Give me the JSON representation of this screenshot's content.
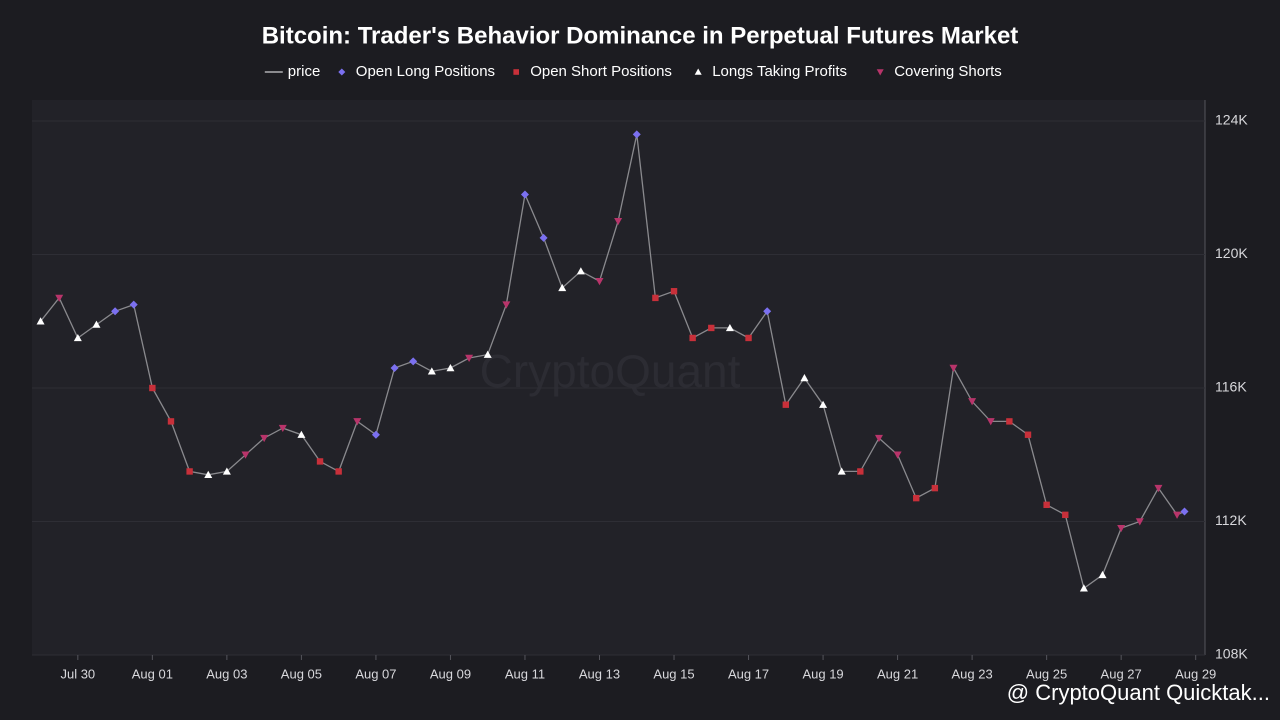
{
  "chart_data": {
    "type": "line",
    "title": "Bitcoin: Trader's Behavior Dominance in Perpetual Futures Market",
    "watermark": "CryptoQuant",
    "credit": "@ CryptoQuant Quicktak...",
    "xlim": [
      -1.23,
      30.25
    ],
    "xticks": [
      {
        "value": 0,
        "label": "Jul 30"
      },
      {
        "value": 2,
        "label": "Aug 01"
      },
      {
        "value": 4,
        "label": "Aug 03"
      },
      {
        "value": 6,
        "label": "Aug 05"
      },
      {
        "value": 8,
        "label": "Aug 07"
      },
      {
        "value": 10,
        "label": "Aug 09"
      },
      {
        "value": 12,
        "label": "Aug 11"
      },
      {
        "value": 14,
        "label": "Aug 13"
      },
      {
        "value": 16,
        "label": "Aug 15"
      },
      {
        "value": 18,
        "label": "Aug 17"
      },
      {
        "value": 20,
        "label": "Aug 19"
      },
      {
        "value": 22,
        "label": "Aug 21"
      },
      {
        "value": 24,
        "label": "Aug 23"
      },
      {
        "value": 26,
        "label": "Aug 25"
      },
      {
        "value": 28,
        "label": "Aug 27"
      },
      {
        "value": 30,
        "label": "Aug 29"
      }
    ],
    "ylim": [
      108000,
      124630
    ],
    "yticks": [
      {
        "value": 108000,
        "label": "108K"
      },
      {
        "value": 112000,
        "label": "112K"
      },
      {
        "value": 116000,
        "label": "116K"
      },
      {
        "value": 120000,
        "label": "120K"
      },
      {
        "value": 124000,
        "label": "124K"
      }
    ],
    "grid": true,
    "series": [
      {
        "name": "price",
        "color": "#8a8a8e",
        "marker": "line",
        "x": [
          -1,
          -0.5,
          0,
          0.5,
          1,
          1.5,
          2,
          2.5,
          3,
          3.5,
          4,
          4.5,
          5,
          5.5,
          6,
          6.5,
          7,
          7.5,
          8,
          8.5,
          9,
          9.5,
          10,
          10.5,
          11,
          11.5,
          12,
          12.5,
          13,
          13.5,
          14,
          14.5,
          15,
          15.5,
          16,
          16.5,
          17,
          17.5,
          18,
          18.5,
          19,
          19.5,
          20,
          20.5,
          21,
          21.5,
          22,
          22.5,
          23,
          23.5,
          24,
          24.5,
          25,
          25.5,
          26,
          26.5,
          27,
          27.5,
          28,
          28.5,
          29,
          29.5,
          29.7
        ],
        "values": [
          118000,
          118700,
          117500,
          117900,
          118300,
          118500,
          116000,
          115000,
          113500,
          113400,
          113500,
          114000,
          114500,
          114800,
          114600,
          113800,
          113500,
          115000,
          114600,
          116600,
          116800,
          116500,
          116600,
          116900,
          117000,
          118500,
          121800,
          120500,
          119000,
          119500,
          119200,
          121000,
          123600,
          118700,
          118900,
          117500,
          117800,
          117800,
          117500,
          118300,
          115500,
          116300,
          115500,
          113500,
          113500,
          114500,
          114000,
          112700,
          113000,
          116600,
          115600,
          115000,
          115000,
          114600,
          112500,
          112200,
          110000,
          110400,
          111800,
          112000,
          113000,
          112200,
          112300
        ]
      },
      {
        "name": "Open Long Positions",
        "color": "#7b70f0",
        "marker": "diamond",
        "x": [
          1,
          1.5,
          8,
          8.5,
          9,
          12,
          12.5,
          15,
          18.5,
          29.7
        ],
        "values": [
          118300,
          118500,
          114600,
          116600,
          116800,
          121800,
          120500,
          123600,
          118300,
          112300
        ]
      },
      {
        "name": "Open Short Positions",
        "color": "#c8303a",
        "marker": "square",
        "x": [
          2,
          2.5,
          3,
          6.5,
          7,
          15.5,
          16,
          16.5,
          17,
          18,
          19,
          21,
          22.5,
          23,
          25,
          25.5,
          26,
          26.5
        ],
        "values": [
          116000,
          115000,
          113500,
          113800,
          113500,
          118700,
          118900,
          117500,
          117800,
          117500,
          115500,
          113500,
          112700,
          113000,
          115000,
          114600,
          112500,
          112200
        ]
      },
      {
        "name": "Longs Taking Profits",
        "color": "#ffffff",
        "marker": "triangle",
        "x": [
          -1,
          0,
          0.5,
          3.5,
          4,
          6,
          9.5,
          10,
          11,
          13,
          13.5,
          17.5,
          19.5,
          20,
          20.5,
          27,
          27.5
        ],
        "values": [
          118000,
          117500,
          117900,
          113400,
          113500,
          114600,
          116500,
          116600,
          117000,
          119000,
          119500,
          117800,
          116300,
          115500,
          113500,
          110000,
          110400
        ]
      },
      {
        "name": "Covering Shorts",
        "color": "#b8346a",
        "marker": "down",
        "x": [
          -0.5,
          4.5,
          5,
          5.5,
          7.5,
          10.5,
          11.5,
          14,
          14.5,
          21.5,
          22,
          23.5,
          24,
          24.5,
          28,
          28.5,
          29,
          29.5
        ],
        "values": [
          118700,
          114000,
          114500,
          114800,
          115000,
          116900,
          118500,
          119200,
          121000,
          114500,
          114000,
          116600,
          115600,
          115000,
          111800,
          112000,
          113000,
          112200
        ]
      }
    ]
  }
}
